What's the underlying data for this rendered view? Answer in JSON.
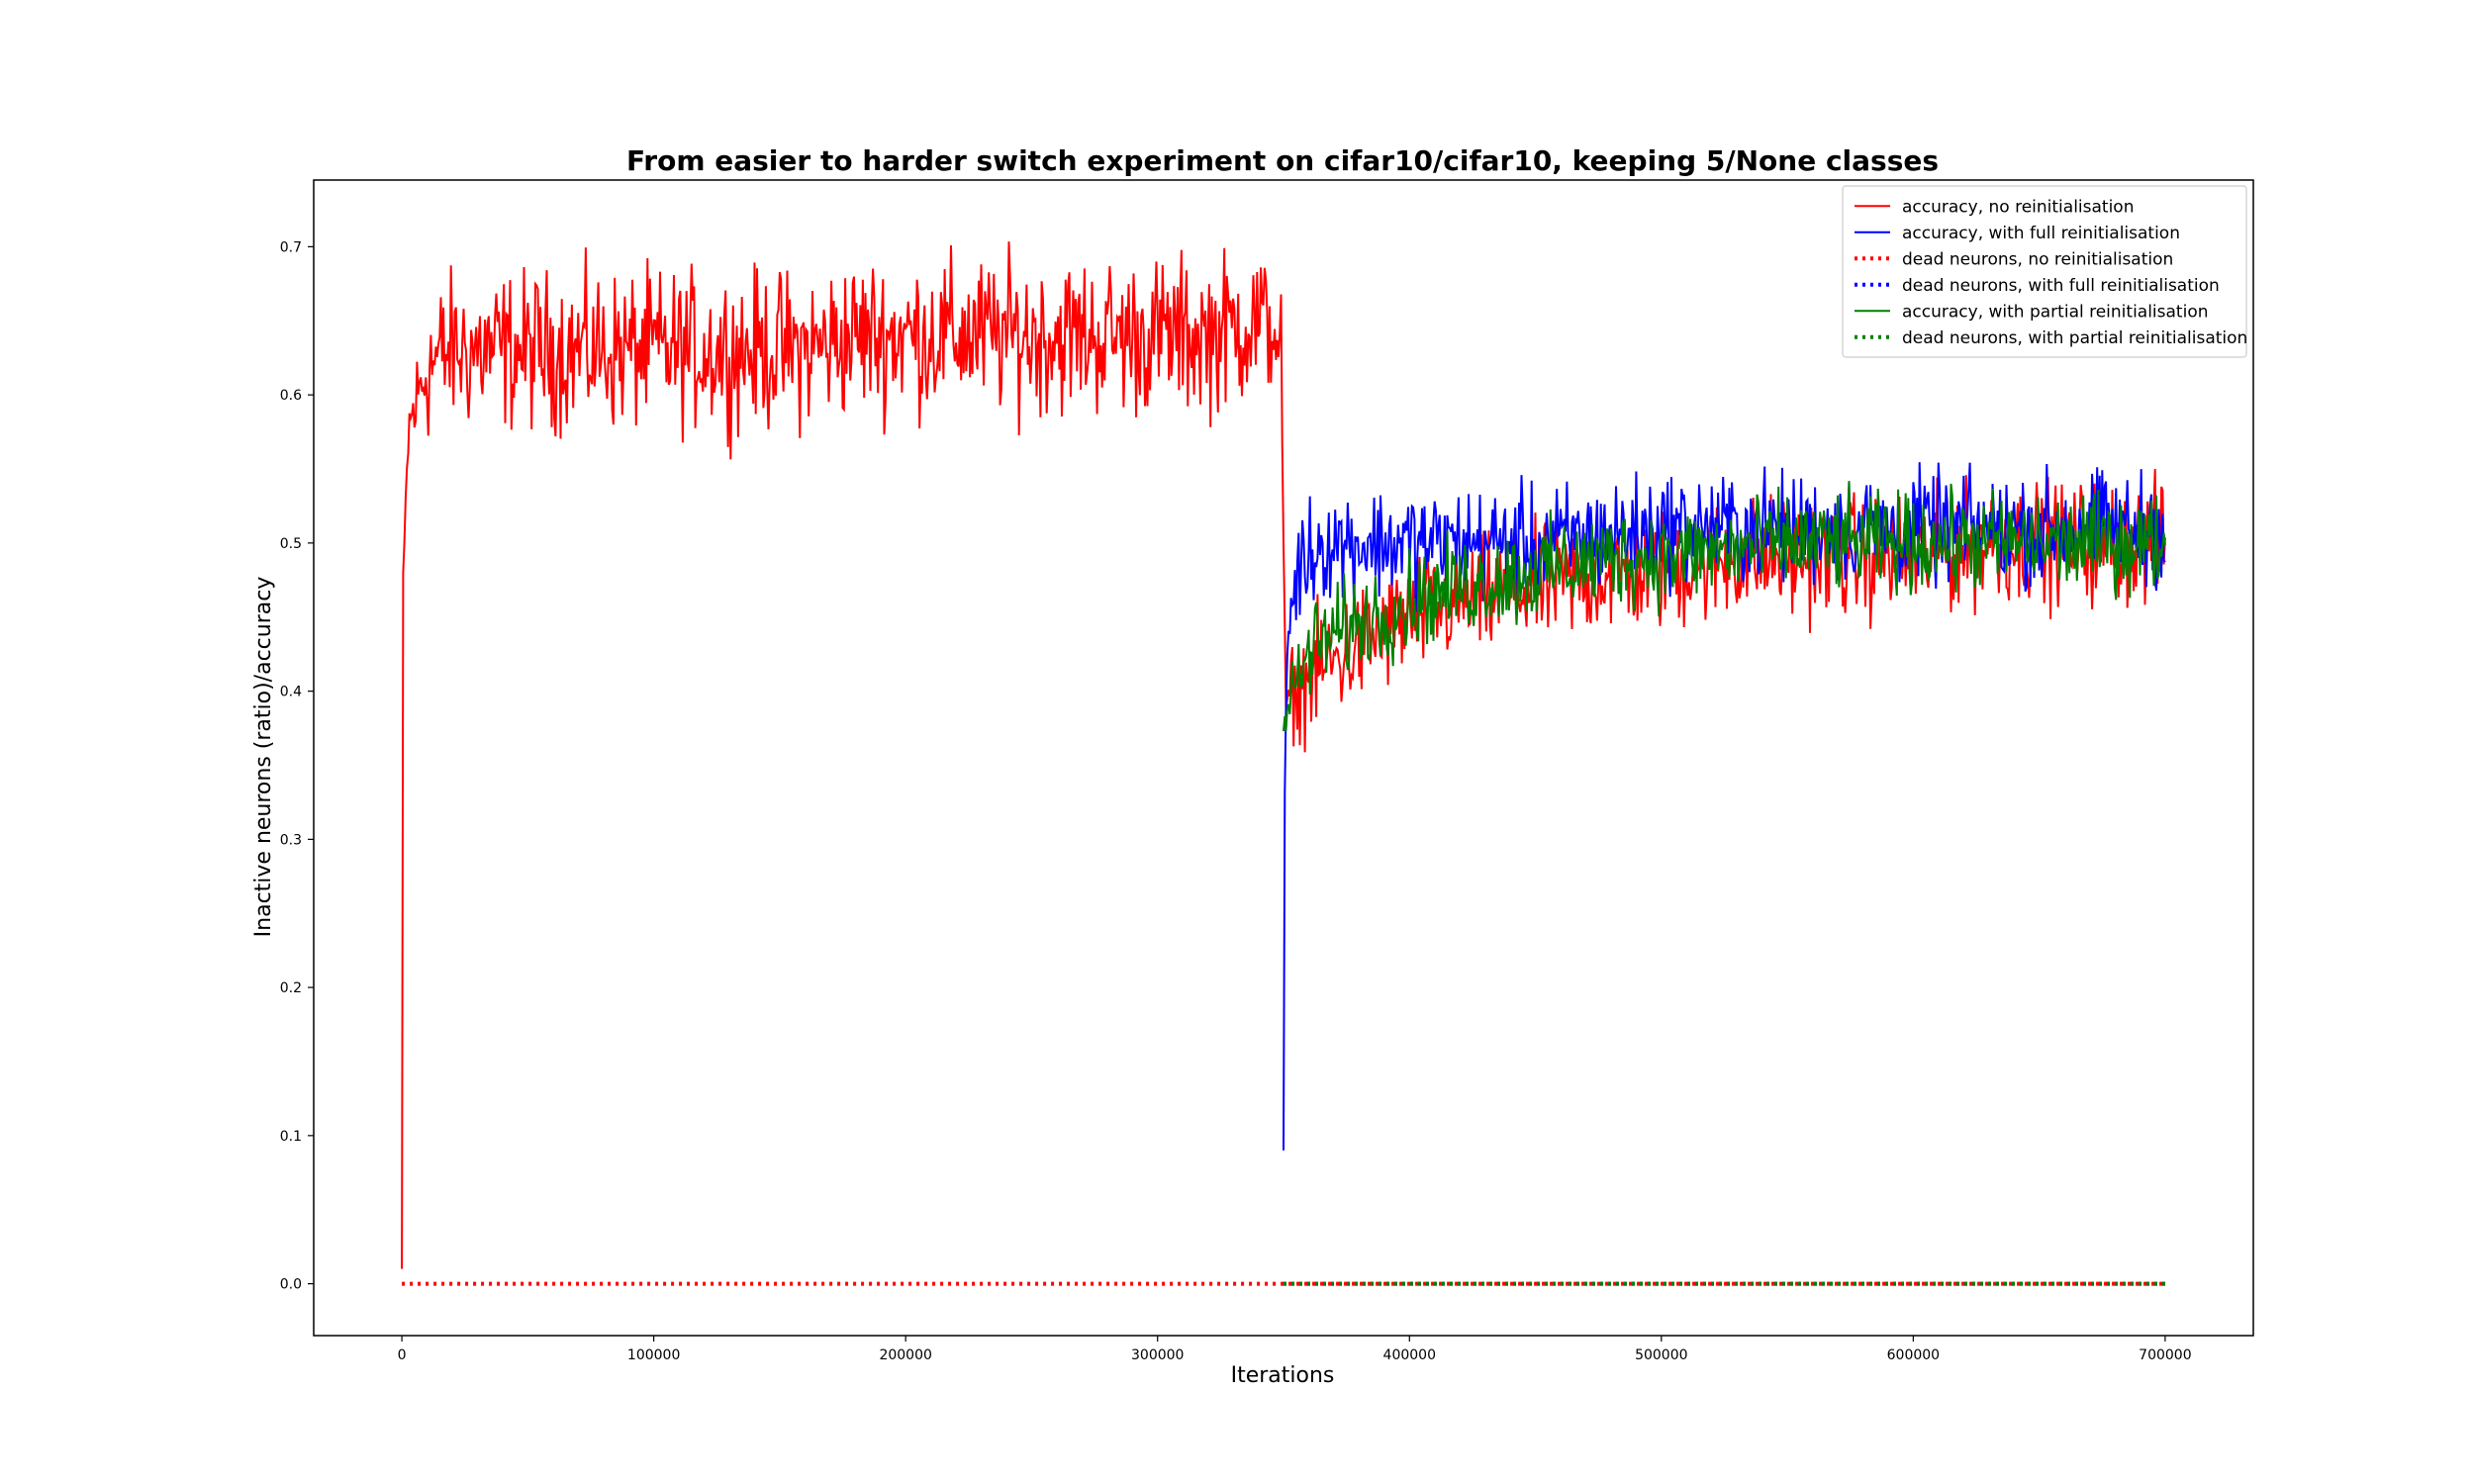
{
  "chart_data": {
    "type": "line",
    "title": "From easier to harder switch experiment on cifar10/cifar10, keeping 5/None classes",
    "xlabel": "Iterations",
    "ylabel": "Inactive neurons (ratio)/accuracy",
    "xlim": [
      -35000,
      735000
    ],
    "ylim": [
      -0.035,
      0.745
    ],
    "xticks": [
      0,
      100000,
      200000,
      300000,
      400000,
      500000,
      600000,
      700000
    ],
    "xtick_labels": [
      "0",
      "100000",
      "200000",
      "300000",
      "400000",
      "500000",
      "600000",
      "700000"
    ],
    "yticks": [
      0.0,
      0.1,
      0.2,
      0.3,
      0.4,
      0.5,
      0.6,
      0.7
    ],
    "ytick_labels": [
      "0.0",
      "0.1",
      "0.2",
      "0.3",
      "0.4",
      "0.5",
      "0.6",
      "0.7"
    ],
    "grid": false,
    "legend_position": "top-right",
    "series": [
      {
        "name": "accuracy, no reinitialisation",
        "color": "#ff0000",
        "style": "solid",
        "x": [
          0,
          500,
          1000,
          1500,
          2000,
          3000,
          5000,
          10000,
          20000,
          40000,
          60000,
          80000,
          100000,
          120000,
          140000,
          160000,
          180000,
          200000,
          220000,
          240000,
          260000,
          280000,
          300000,
          320000,
          340000,
          349000,
          350000,
          351000,
          352000,
          355000,
          360000,
          370000,
          380000,
          400000,
          420000,
          450000,
          480000,
          500000,
          530000,
          560000,
          600000,
          630000,
          660000,
          700000
        ],
        "y": [
          0.01,
          0.48,
          0.5,
          0.53,
          0.55,
          0.58,
          0.59,
          0.62,
          0.63,
          0.63,
          0.63,
          0.63,
          0.63,
          0.63,
          0.63,
          0.63,
          0.64,
          0.64,
          0.64,
          0.64,
          0.64,
          0.64,
          0.64,
          0.64,
          0.65,
          0.64,
          0.5,
          0.38,
          0.4,
          0.4,
          0.41,
          0.42,
          0.43,
          0.45,
          0.46,
          0.47,
          0.48,
          0.48,
          0.49,
          0.49,
          0.49,
          0.5,
          0.5,
          0.5
        ],
        "noise": [
          0,
          0,
          0,
          0,
          0.01,
          0.02,
          0.03,
          0.045,
          0.045,
          0.045,
          0.045,
          0.045,
          0.045,
          0.045,
          0.045,
          0.045,
          0.045,
          0.045,
          0.045,
          0.045,
          0.045,
          0.045,
          0.045,
          0.045,
          0.045,
          0.03,
          0,
          0.01,
          0.02,
          0.03,
          0.035,
          0.035,
          0.035,
          0.035,
          0.035,
          0.035,
          0.035,
          0.035,
          0.035,
          0.035,
          0.035,
          0.035,
          0.035,
          0.035
        ]
      },
      {
        "name": "accuracy, with full reinitialisation",
        "color": "#0000ff",
        "style": "solid",
        "x": [
          350000,
          350500,
          351000,
          352000,
          354000,
          358000,
          365000,
          380000,
          400000,
          450000,
          500000,
          550000,
          600000,
          650000,
          700000
        ],
        "y": [
          0.09,
          0.33,
          0.4,
          0.44,
          0.47,
          0.49,
          0.5,
          0.5,
          0.5,
          0.5,
          0.51,
          0.51,
          0.51,
          0.51,
          0.51
        ],
        "noise": [
          0,
          0.01,
          0.02,
          0.025,
          0.03,
          0.032,
          0.032,
          0.032,
          0.032,
          0.032,
          0.032,
          0.032,
          0.032,
          0.032,
          0.032
        ]
      },
      {
        "name": "dead neurons, no reinitialisation",
        "color": "#ff0000",
        "style": "dotted",
        "x": [
          0,
          700000
        ],
        "y": [
          0.0,
          0.0
        ]
      },
      {
        "name": "dead neurons, with full reinitialisation",
        "color": "#0000ff",
        "style": "dotted",
        "x": [
          350000,
          700000
        ],
        "y": [
          0.0,
          0.0
        ]
      },
      {
        "name": "accuracy, with partial reinitialisation",
        "color": "#008000",
        "style": "solid",
        "x": [
          350000,
          352000,
          356000,
          362000,
          372000,
          385000,
          400000,
          420000,
          450000,
          480000,
          500000,
          550000,
          600000,
          650000,
          700000
        ],
        "y": [
          0.37,
          0.39,
          0.41,
          0.43,
          0.44,
          0.45,
          0.46,
          0.47,
          0.48,
          0.49,
          0.49,
          0.5,
          0.5,
          0.5,
          0.5
        ],
        "noise": [
          0.01,
          0.02,
          0.025,
          0.028,
          0.028,
          0.028,
          0.028,
          0.028,
          0.028,
          0.028,
          0.028,
          0.028,
          0.028,
          0.028,
          0.028
        ]
      },
      {
        "name": "dead neurons, with partial reinitialisation",
        "color": "#008000",
        "style": "dotted",
        "x": [
          350000,
          700000
        ],
        "y": [
          0.0,
          0.0
        ]
      }
    ]
  }
}
